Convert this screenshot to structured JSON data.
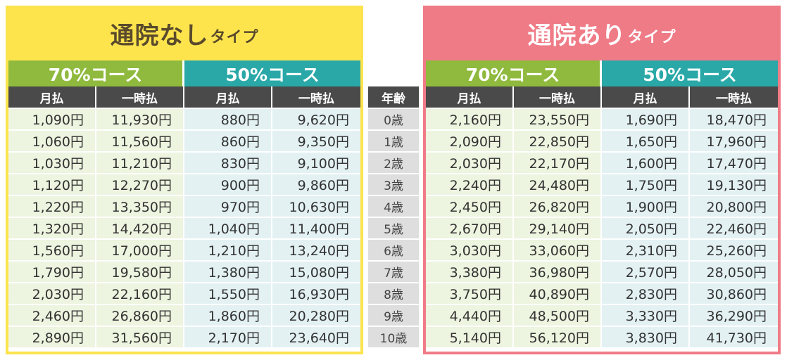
{
  "left_panel": {
    "title_main": "通院なし",
    "title_suffix": "タイプ",
    "course_70": "70%コース",
    "course_50": "50%コース",
    "sub_monthly": "月払",
    "sub_lump": "一時払",
    "colors": {
      "panel": "#fde44d",
      "course70": "#8fba3e",
      "course50": "#2aa8a8"
    },
    "rows": [
      [
        "1,090円",
        "11,930円",
        "880円",
        "9,620円"
      ],
      [
        "1,060円",
        "11,560円",
        "860円",
        "9,350円"
      ],
      [
        "1,030円",
        "11,210円",
        "830円",
        "9,100円"
      ],
      [
        "1,120円",
        "12,270円",
        "900円",
        "9,860円"
      ],
      [
        "1,220円",
        "13,350円",
        "970円",
        "10,630円"
      ],
      [
        "1,320円",
        "14,420円",
        "1,040円",
        "11,400円"
      ],
      [
        "1,560円",
        "17,000円",
        "1,210円",
        "13,240円"
      ],
      [
        "1,790円",
        "19,580円",
        "1,380円",
        "15,080円"
      ],
      [
        "2,030円",
        "22,160円",
        "1,550円",
        "16,930円"
      ],
      [
        "2,460円",
        "26,860円",
        "1,860円",
        "20,280円"
      ],
      [
        "2,890円",
        "31,560円",
        "2,170円",
        "23,640円"
      ]
    ]
  },
  "age_column": {
    "header": "年齢",
    "ages": [
      "0歳",
      "1歳",
      "2歳",
      "3歳",
      "4歳",
      "5歳",
      "6歳",
      "7歳",
      "8歳",
      "9歳",
      "10歳"
    ]
  },
  "right_panel": {
    "title_main": "通院あり",
    "title_suffix": "タイプ",
    "course_70": "70%コース",
    "course_50": "50%コース",
    "sub_monthly": "月払",
    "sub_lump": "一時払",
    "colors": {
      "panel": "#ef7b87",
      "course70": "#8fba3e",
      "course50": "#2aa8a8"
    },
    "rows": [
      [
        "2,160円",
        "23,550円",
        "1,690円",
        "18,470円"
      ],
      [
        "2,090円",
        "22,850円",
        "1,650円",
        "17,960円"
      ],
      [
        "2,030円",
        "22,170円",
        "1,600円",
        "17,470円"
      ],
      [
        "2,240円",
        "24,480円",
        "1,750円",
        "19,130円"
      ],
      [
        "2,450円",
        "26,820円",
        "1,900円",
        "20,800円"
      ],
      [
        "2,670円",
        "29,140円",
        "2,050円",
        "22,460円"
      ],
      [
        "3,030円",
        "33,060円",
        "2,310円",
        "25,260円"
      ],
      [
        "3,380円",
        "36,980円",
        "2,570円",
        "28,050円"
      ],
      [
        "3,750円",
        "40,890円",
        "2,830円",
        "30,860円"
      ],
      [
        "4,440円",
        "48,500円",
        "3,330円",
        "36,290円"
      ],
      [
        "5,140円",
        "56,120円",
        "3,830円",
        "41,730円"
      ]
    ]
  }
}
